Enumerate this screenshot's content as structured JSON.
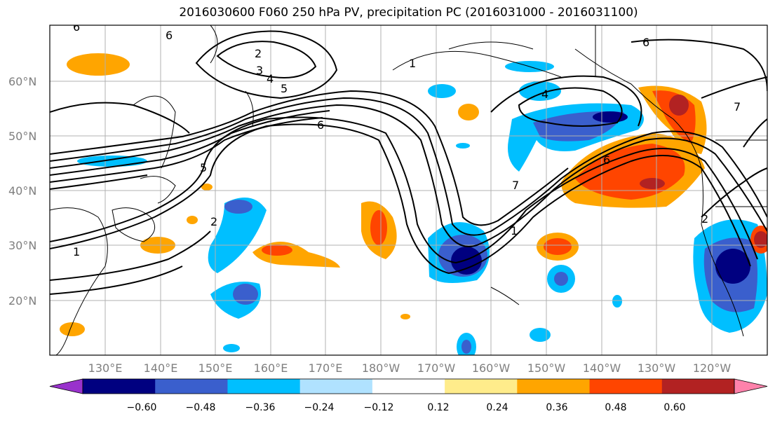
{
  "title": "2016030600 F060 250 hPa PV, precipitation PC (2016031000 - 2016031100)",
  "lat_labels": [
    "60°N",
    "50°N",
    "40°N",
    "30°N",
    "20°N"
  ],
  "lon_labels": [
    "130°E",
    "140°E",
    "150°E",
    "160°E",
    "170°E",
    "180°W",
    "170°W",
    "160°W",
    "150°W",
    "140°W",
    "130°W",
    "120°W"
  ],
  "contour_labels": [
    "2",
    "3",
    "4",
    "5",
    "6",
    "6",
    "6",
    "4",
    "6",
    "7",
    "7",
    "1",
    "2",
    "1",
    "1",
    "6",
    "2",
    "5"
  ],
  "colorbar": {
    "ticks": [
      "−0.60",
      "−0.48",
      "−0.36",
      "−0.24",
      "−0.12",
      "0.12",
      "0.24",
      "0.36",
      "0.48",
      "0.60"
    ],
    "colors": [
      "#9932cc",
      "#000080",
      "#3a5fcd",
      "#00bfff",
      "#b0e2ff",
      "#ffffff",
      "#ffec8b",
      "#ffa500",
      "#ff4500",
      "#b22222",
      "#ff82ab"
    ]
  }
}
